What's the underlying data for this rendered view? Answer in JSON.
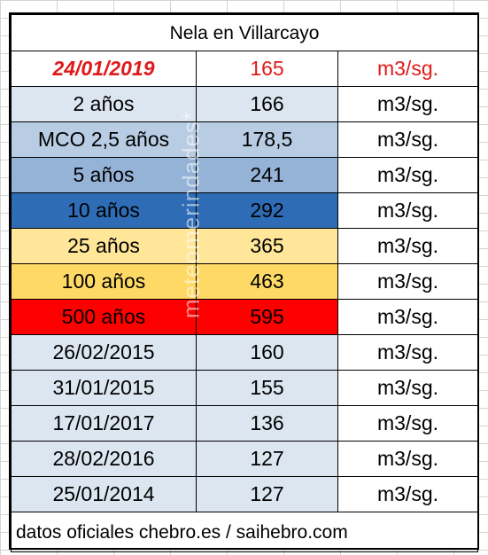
{
  "title": "Nela en Villarcayo",
  "rows": [
    {
      "label": "24/01/2019",
      "value": "165",
      "unit": "m3/sg.",
      "style": "current"
    },
    {
      "label": "2 años",
      "value": "166",
      "unit": "m3/sg.",
      "style": "light"
    },
    {
      "label": "MCO 2,5 años",
      "value": "178,5",
      "unit": "m3/sg.",
      "style": "mid"
    },
    {
      "label": "5 años",
      "value": "241",
      "unit": "m3/sg.",
      "style": "med2"
    },
    {
      "label": "10 años",
      "value": "292",
      "unit": "m3/sg.",
      "style": "blue"
    },
    {
      "label": "25 años",
      "value": "365",
      "unit": "m3/sg.",
      "style": "lightyellow"
    },
    {
      "label": "100 años",
      "value": "463",
      "unit": "m3/sg.",
      "style": "gold"
    },
    {
      "label": "500 años",
      "value": "595",
      "unit": "m3/sg.",
      "style": "red"
    },
    {
      "label": "26/02/2015",
      "value": "160",
      "unit": "m3/sg.",
      "style": "light"
    },
    {
      "label": "31/01/2015",
      "value": "155",
      "unit": "m3/sg.",
      "style": "light"
    },
    {
      "label": "17/01/2017",
      "value": "136",
      "unit": "m3/sg.",
      "style": "light"
    },
    {
      "label": "28/02/2016",
      "value": "127",
      "unit": "m3/sg.",
      "style": "light"
    },
    {
      "label": "25/01/2014",
      "value": "127",
      "unit": "m3/sg.",
      "style": "light"
    }
  ],
  "footer": "datos oficiales chebro.es / saihebro.com",
  "watermark": "meteomerindades*",
  "colors": {
    "current_text": "#e01a1a",
    "light": "#dce6f1",
    "mid": "#b8cce4",
    "med2": "#95b3d7",
    "blue": "#2e6db5",
    "lightyellow": "#ffe699",
    "gold": "#ffd966",
    "red": "#ff0000"
  }
}
